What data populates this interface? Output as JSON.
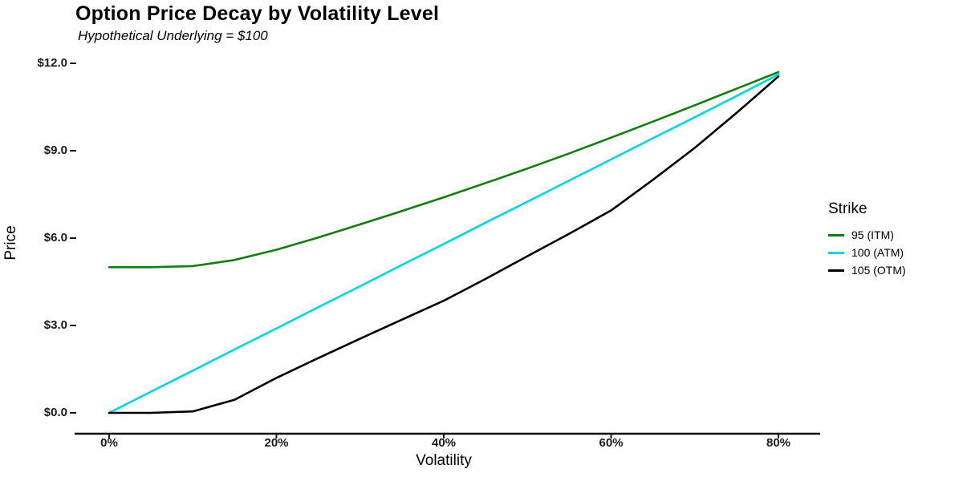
{
  "title": "Option Price Decay by Volatility Level",
  "subtitle": "Hypothetical Underlying = $100",
  "chart_data": {
    "type": "line",
    "title": "Option Price Decay by Volatility Level",
    "subtitle": "Hypothetical Underlying = $100",
    "xlabel": "Volatility",
    "ylabel": "Price",
    "grid": false,
    "legend_title": "Strike",
    "legend_position": "right",
    "xlim": [
      0,
      80
    ],
    "ylim": [
      0,
      12
    ],
    "x_tick_values": [
      0,
      20,
      40,
      60,
      80
    ],
    "x_tick_labels": [
      "0%",
      "20%",
      "40%",
      "60%",
      "80%"
    ],
    "y_tick_values": [
      0,
      3,
      6,
      9,
      12
    ],
    "y_tick_labels": [
      "$0.0",
      "$3.0",
      "$6.0",
      "$9.0",
      "$12.0"
    ],
    "x": [
      0,
      5,
      10,
      15,
      20,
      25,
      30,
      35,
      40,
      45,
      50,
      55,
      60,
      65,
      70,
      75,
      80
    ],
    "series": [
      {
        "name": "95 (ITM)",
        "color": "#0f7d0f",
        "values": [
          5.0,
          5.0,
          5.04,
          5.25,
          5.6,
          6.02,
          6.47,
          6.93,
          7.4,
          7.89,
          8.39,
          8.91,
          9.45,
          10.0,
          10.56,
          11.13,
          11.7
        ]
      },
      {
        "name": "100 (ATM)",
        "color": "#00d8e0",
        "values": [
          0.0,
          0.73,
          1.45,
          2.18,
          2.9,
          3.63,
          4.35,
          5.08,
          5.8,
          6.53,
          7.25,
          7.98,
          8.7,
          9.43,
          10.15,
          10.88,
          11.62
        ]
      },
      {
        "name": "105 (OTM)",
        "color": "#000000",
        "values": [
          0.0,
          0.0,
          0.05,
          0.45,
          1.2,
          1.88,
          2.55,
          3.2,
          3.85,
          4.6,
          5.38,
          6.15,
          6.95,
          8.0,
          9.1,
          10.3,
          11.55
        ]
      }
    ]
  }
}
